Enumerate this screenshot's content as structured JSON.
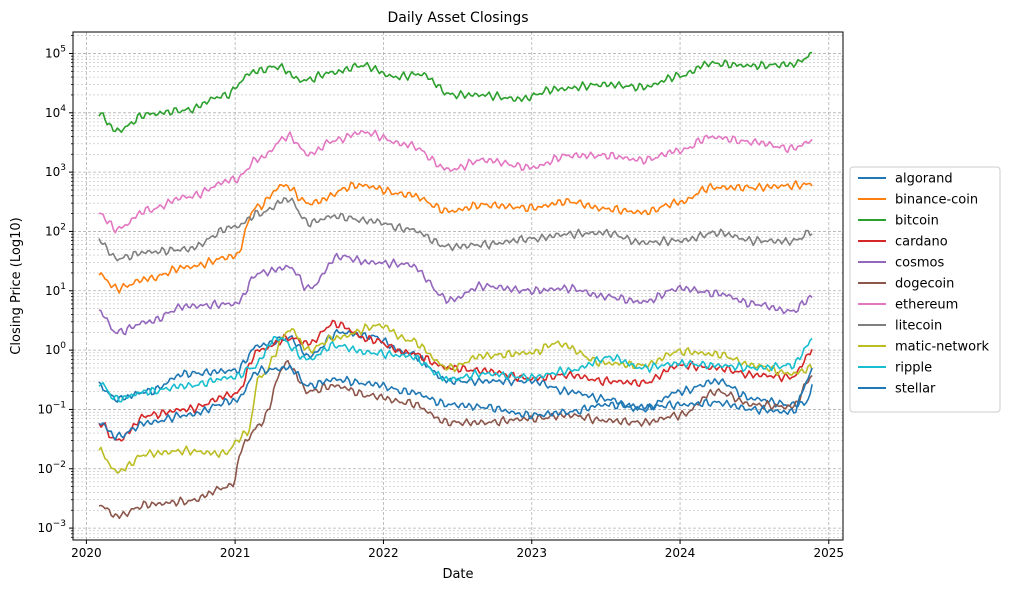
{
  "chart_data": {
    "type": "line",
    "title": "Daily Asset Closings",
    "xlabel": "Date",
    "ylabel": "Closing Price (Log10)",
    "y_scale": "log10",
    "x_ticks": [
      "2020",
      "2021",
      "2022",
      "2023",
      "2024",
      "2025"
    ],
    "y_ticks": [
      {
        "value": 0.001,
        "label": "10",
        "exp": "−3"
      },
      {
        "value": 0.01,
        "label": "10",
        "exp": "−2"
      },
      {
        "value": 0.1,
        "label": "10",
        "exp": "−1"
      },
      {
        "value": 1,
        "label": "10",
        "exp": "0"
      },
      {
        "value": 10,
        "label": "10",
        "exp": "1"
      },
      {
        "value": 100,
        "label": "10",
        "exp": "2"
      },
      {
        "value": 1000,
        "label": "10",
        "exp": "3"
      },
      {
        "value": 10000,
        "label": "10",
        "exp": "4"
      },
      {
        "value": 100000,
        "label": "10",
        "exp": "5"
      }
    ],
    "ylim": [
      0.00063,
      230000
    ],
    "xlim": [
      "2019-11-29",
      "2025-02-05"
    ],
    "grid": "major and minor, dashed",
    "legend_position": "outside right, center",
    "series": [
      {
        "name": "algorand",
        "color": "#1f77b4",
        "x": [
          "2020-02-01",
          "2020-03-15",
          "2020-06-01",
          "2020-09-01",
          "2021-01-01",
          "2021-03-01",
          "2021-05-15",
          "2021-07-01",
          "2021-09-15",
          "2021-12-01",
          "2022-03-01",
          "2022-06-15",
          "2022-09-01",
          "2023-01-01",
          "2023-04-01",
          "2023-07-01",
          "2023-10-01",
          "2024-01-01",
          "2024-04-01",
          "2024-07-01",
          "2024-10-01",
          "2024-11-10",
          "2024-11-25"
        ],
        "y": [
          0.25,
          0.15,
          0.2,
          0.4,
          0.45,
          1.2,
          1.6,
          0.8,
          2.0,
          1.7,
          0.9,
          0.3,
          0.3,
          0.3,
          0.2,
          0.15,
          0.1,
          0.2,
          0.3,
          0.15,
          0.12,
          0.13,
          0.35
        ]
      },
      {
        "name": "binance-coin",
        "color": "#ff7f0e",
        "x": [
          "2020-02-01",
          "2020-03-15",
          "2020-06-01",
          "2020-09-01",
          "2021-01-01",
          "2021-02-20",
          "2021-05-01",
          "2021-07-01",
          "2021-11-01",
          "2022-03-01",
          "2022-06-15",
          "2022-09-01",
          "2023-01-01",
          "2023-04-01",
          "2023-07-01",
          "2023-10-01",
          "2024-01-01",
          "2024-03-15",
          "2024-07-01",
          "2024-10-01",
          "2024-11-25"
        ],
        "y": [
          19,
          11,
          16,
          25,
          38,
          250,
          600,
          300,
          600,
          420,
          220,
          280,
          250,
          320,
          240,
          210,
          310,
          550,
          550,
          590,
          630
        ]
      },
      {
        "name": "bitcoin",
        "color": "#2ca02c",
        "x": [
          "2020-02-01",
          "2020-03-15",
          "2020-06-01",
          "2020-09-01",
          "2020-12-01",
          "2021-02-20",
          "2021-04-15",
          "2021-06-15",
          "2021-09-01",
          "2021-11-10",
          "2022-02-01",
          "2022-04-01",
          "2022-06-20",
          "2022-09-01",
          "2022-12-01",
          "2023-03-01",
          "2023-07-01",
          "2023-10-01",
          "2024-01-01",
          "2024-03-15",
          "2024-07-01",
          "2024-10-01",
          "2024-11-25"
        ],
        "y": [
          9500,
          5000,
          9500,
          11000,
          19000,
          50000,
          60000,
          35000,
          48000,
          63000,
          40000,
          45000,
          20000,
          20000,
          17000,
          25000,
          30000,
          27000,
          42000,
          68000,
          62000,
          65000,
          95000
        ]
      },
      {
        "name": "cardano",
        "color": "#d62728",
        "x": [
          "2020-02-01",
          "2020-03-15",
          "2020-06-01",
          "2020-09-01",
          "2021-01-01",
          "2021-03-01",
          "2021-05-15",
          "2021-07-01",
          "2021-09-01",
          "2021-12-01",
          "2022-03-01",
          "2022-06-15",
          "2022-09-01",
          "2023-01-01",
          "2023-04-01",
          "2023-07-01",
          "2023-10-01",
          "2024-01-01",
          "2024-04-01",
          "2024-07-01",
          "2024-10-01",
          "2024-11-25"
        ],
        "y": [
          0.06,
          0.03,
          0.08,
          0.1,
          0.18,
          1.0,
          1.6,
          1.3,
          2.8,
          1.5,
          0.9,
          0.5,
          0.45,
          0.33,
          0.38,
          0.3,
          0.28,
          0.55,
          0.5,
          0.38,
          0.35,
          1.0
        ]
      },
      {
        "name": "cosmos",
        "color": "#9467bd",
        "x": [
          "2020-02-01",
          "2020-03-15",
          "2020-06-01",
          "2020-09-01",
          "2021-01-01",
          "2021-03-01",
          "2021-05-15",
          "2021-07-01",
          "2021-09-15",
          "2021-12-01",
          "2022-03-01",
          "2022-06-15",
          "2022-09-01",
          "2023-01-01",
          "2023-04-01",
          "2023-07-01",
          "2023-10-01",
          "2024-01-01",
          "2024-04-01",
          "2024-07-01",
          "2024-10-01",
          "2024-11-25"
        ],
        "y": [
          4.5,
          2.0,
          3.0,
          5.5,
          6.0,
          20,
          25,
          11,
          38,
          30,
          28,
          7,
          12,
          10,
          11,
          8,
          6.5,
          11,
          9,
          6,
          4.5,
          8
        ]
      },
      {
        "name": "dogecoin",
        "color": "#8c564b",
        "x": [
          "2020-02-01",
          "2020-03-15",
          "2020-06-01",
          "2020-09-01",
          "2020-12-20",
          "2021-01-28",
          "2021-03-01",
          "2021-05-08",
          "2021-07-01",
          "2021-09-01",
          "2021-12-01",
          "2022-03-01",
          "2022-06-15",
          "2022-09-01",
          "2023-01-01",
          "2023-04-01",
          "2023-07-01",
          "2023-10-01",
          "2024-01-01",
          "2024-03-30",
          "2024-07-01",
          "2024-10-01",
          "2024-11-25"
        ],
        "y": [
          0.0025,
          0.0016,
          0.0025,
          0.0028,
          0.005,
          0.03,
          0.055,
          0.6,
          0.2,
          0.25,
          0.17,
          0.13,
          0.06,
          0.06,
          0.07,
          0.08,
          0.065,
          0.06,
          0.08,
          0.2,
          0.12,
          0.11,
          0.38
        ]
      },
      {
        "name": "ethereum",
        "color": "#e377c2",
        "x": [
          "2020-02-01",
          "2020-03-15",
          "2020-06-01",
          "2020-09-01",
          "2021-01-01",
          "2021-03-01",
          "2021-05-12",
          "2021-07-01",
          "2021-09-01",
          "2021-11-10",
          "2022-03-01",
          "2022-06-15",
          "2022-09-01",
          "2023-01-01",
          "2023-04-01",
          "2023-07-01",
          "2023-10-01",
          "2024-01-01",
          "2024-03-15",
          "2024-07-01",
          "2024-10-01",
          "2024-11-25"
        ],
        "y": [
          200,
          110,
          230,
          380,
          750,
          1700,
          4000,
          2000,
          3400,
          4700,
          2900,
          1100,
          1600,
          1200,
          1900,
          1900,
          1600,
          2300,
          3900,
          3200,
          2500,
          3400
        ]
      },
      {
        "name": "litecoin",
        "color": "#7f7f7f",
        "x": [
          "2020-02-01",
          "2020-03-15",
          "2020-06-01",
          "2020-09-01",
          "2021-01-01",
          "2021-03-01",
          "2021-05-12",
          "2021-07-01",
          "2021-09-01",
          "2021-12-01",
          "2022-03-01",
          "2022-06-15",
          "2022-09-01",
          "2023-01-01",
          "2023-04-01",
          "2023-07-01",
          "2023-10-01",
          "2024-01-01",
          "2024-04-01",
          "2024-07-01",
          "2024-10-01",
          "2024-11-25"
        ],
        "y": [
          70,
          35,
          45,
          50,
          120,
          200,
          350,
          140,
          180,
          150,
          110,
          55,
          60,
          75,
          90,
          95,
          65,
          70,
          95,
          70,
          68,
          100
        ]
      },
      {
        "name": "matic-network",
        "color": "#bcbd22",
        "x": [
          "2020-02-01",
          "2020-03-15",
          "2020-06-01",
          "2020-09-01",
          "2020-12-01",
          "2021-02-01",
          "2021-03-01",
          "2021-05-18",
          "2021-07-01",
          "2021-09-01",
          "2021-12-25",
          "2022-03-01",
          "2022-06-15",
          "2022-09-01",
          "2023-01-01",
          "2023-03-01",
          "2023-07-01",
          "2023-10-01",
          "2024-01-01",
          "2024-04-01",
          "2024-07-01",
          "2024-10-01",
          "2024-11-25"
        ],
        "y": [
          0.02,
          0.009,
          0.018,
          0.02,
          0.018,
          0.04,
          0.35,
          2.2,
          1.0,
          1.6,
          2.6,
          1.5,
          0.5,
          0.8,
          0.9,
          1.3,
          0.6,
          0.55,
          0.95,
          0.85,
          0.55,
          0.4,
          0.5
        ]
      },
      {
        "name": "ripple",
        "color": "#17becf",
        "x": [
          "2020-02-01",
          "2020-03-15",
          "2020-06-01",
          "2020-09-01",
          "2021-01-01",
          "2021-02-10",
          "2021-04-15",
          "2021-07-01",
          "2021-09-01",
          "2021-12-01",
          "2022-03-01",
          "2022-06-15",
          "2022-09-01",
          "2023-01-01",
          "2023-04-01",
          "2023-07-15",
          "2023-10-01",
          "2024-01-01",
          "2024-04-01",
          "2024-07-01",
          "2024-10-01",
          "2024-11-25"
        ],
        "y": [
          0.28,
          0.15,
          0.2,
          0.25,
          0.35,
          0.5,
          1.6,
          0.7,
          1.2,
          0.9,
          0.8,
          0.32,
          0.4,
          0.35,
          0.45,
          0.75,
          0.5,
          0.6,
          0.55,
          0.5,
          0.55,
          1.5
        ]
      },
      {
        "name": "stellar",
        "color": "#1f77b4",
        "x": [
          "2020-02-01",
          "2020-03-15",
          "2020-06-01",
          "2020-09-01",
          "2021-01-01",
          "2021-03-01",
          "2021-05-15",
          "2021-07-01",
          "2021-09-01",
          "2021-12-01",
          "2022-03-01",
          "2022-06-15",
          "2022-09-01",
          "2023-01-01",
          "2023-04-01",
          "2023-07-01",
          "2023-10-01",
          "2024-01-01",
          "2024-04-01",
          "2024-07-01",
          "2024-10-01",
          "2024-11-25"
        ],
        "y": [
          0.06,
          0.035,
          0.06,
          0.08,
          0.14,
          0.45,
          0.5,
          0.25,
          0.32,
          0.27,
          0.2,
          0.12,
          0.11,
          0.08,
          0.09,
          0.12,
          0.11,
          0.12,
          0.13,
          0.1,
          0.09,
          0.45
        ]
      }
    ]
  }
}
